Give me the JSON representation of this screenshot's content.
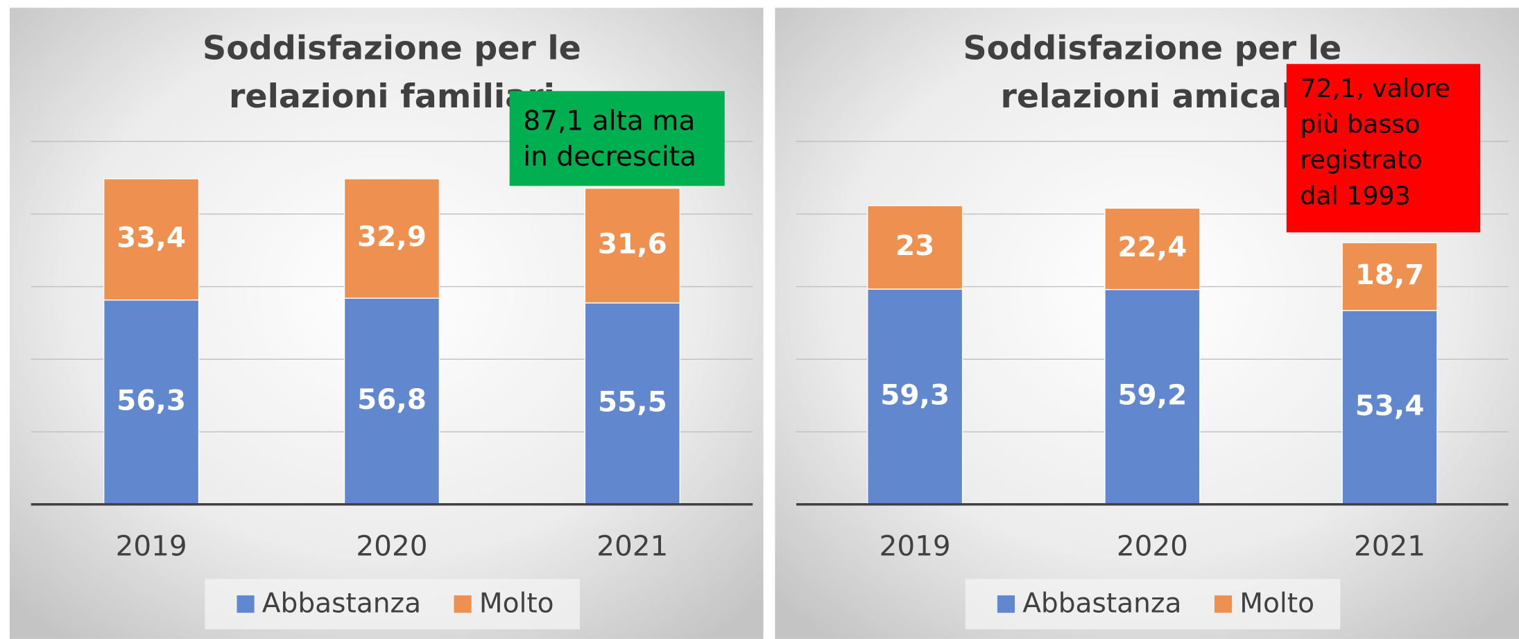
{
  "chart_data": [
    {
      "type": "bar",
      "stacked": true,
      "title": "Soddisfazione per le  relazioni familiari",
      "categories": [
        "2019",
        "2020",
        "2021"
      ],
      "series": [
        {
          "name": "Abbastanza",
          "color": "#6188cf",
          "values": [
            56.3,
            56.8,
            55.5
          ],
          "value_labels": [
            "56,3",
            "56,8",
            "55,5"
          ]
        },
        {
          "name": "Molto",
          "color": "#ee904f",
          "values": [
            33.4,
            32.9,
            31.6
          ],
          "value_labels": [
            "33,4",
            "32,9",
            "31,6"
          ]
        }
      ],
      "ylim": [
        0,
        100
      ],
      "yticks": [
        0,
        20,
        40,
        60,
        80,
        100
      ],
      "grid": true,
      "legend": "bottom",
      "annotation": "87,1 alta ma in decrescita",
      "annotation_color": "#00b050"
    },
    {
      "type": "bar",
      "stacked": true,
      "title": "Soddisfazione per le relazioni amicali",
      "categories": [
        "2019",
        "2020",
        "2021"
      ],
      "series": [
        {
          "name": "Abbastanza",
          "color": "#6188cf",
          "values": [
            59.3,
            59.2,
            53.4
          ],
          "value_labels": [
            "59,3",
            "59,2",
            "53,4"
          ]
        },
        {
          "name": "Molto",
          "color": "#ee904f",
          "values": [
            23,
            22.4,
            18.7
          ],
          "value_labels": [
            "23",
            "22,4",
            "18,7"
          ]
        }
      ],
      "ylim": [
        0,
        100
      ],
      "yticks": [
        0,
        20,
        40,
        60,
        80,
        100
      ],
      "grid": true,
      "legend": "bottom",
      "annotation": "72,1, valore più basso registrato dal 1993",
      "annotation_color": "#ff0000"
    }
  ]
}
